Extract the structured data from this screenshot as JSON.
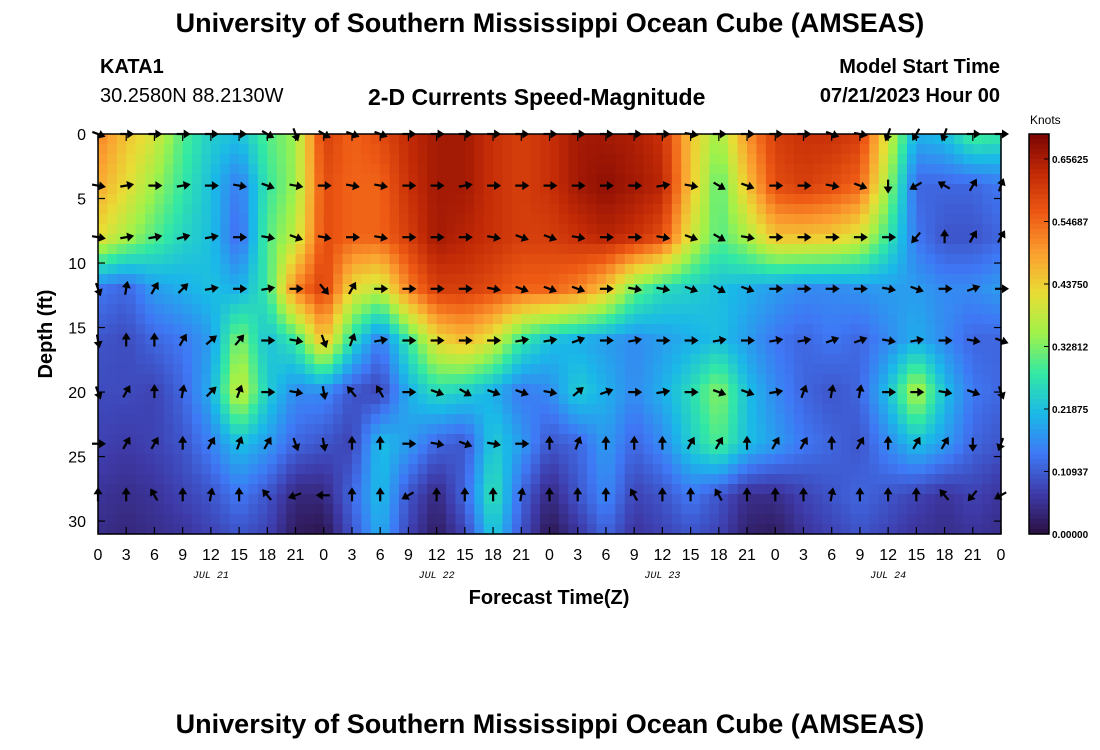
{
  "header": {
    "title": "University of Southern Mississippi Ocean Cube (AMSEAS)",
    "station_id": "KATA1",
    "coordinates": "30.2580N  88.2130W",
    "subtitle": "2-D Currents Speed-Magnitude",
    "model_start_label": "Model Start Time",
    "model_start_value": "07/21/2023 Hour 00"
  },
  "footer": {
    "title": "University of Southern Mississippi Ocean Cube (AMSEAS)"
  },
  "chart_data": {
    "type": "heatmap",
    "title": "2-D Currents Speed-Magnitude",
    "xlabel": "Forecast Time(Z)",
    "ylabel": "Depth (ft)",
    "x_range_hours": [
      0,
      96
    ],
    "y_range_ft": [
      0,
      31
    ],
    "x_tick_labels": [
      "0",
      "3",
      "6",
      "9",
      "12",
      "15",
      "18",
      "21",
      "0",
      "3",
      "6",
      "9",
      "12",
      "15",
      "18",
      "21",
      "0",
      "3",
      "6",
      "9",
      "12",
      "15",
      "18",
      "21",
      "0",
      "3",
      "6",
      "9",
      "12",
      "15",
      "18",
      "21",
      "0"
    ],
    "date_labels": [
      {
        "text": "JUL 21",
        "hour": 12
      },
      {
        "text": "JUL 22",
        "hour": 36
      },
      {
        "text": "JUL 23",
        "hour": 60
      },
      {
        "text": "JUL 24",
        "hour": 84
      }
    ],
    "y_ticks": [
      0,
      5,
      10,
      15,
      20,
      25,
      30
    ],
    "colorbar": {
      "units": "Knots",
      "range": [
        0,
        0.7
      ],
      "tick_values": [
        0.0,
        0.10937,
        0.21875,
        0.32812,
        0.4375,
        0.54687,
        0.65625
      ],
      "tick_labels": [
        "0.00000",
        "0.10937",
        "0.21875",
        "0.32812",
        "0.43750",
        "0.54687",
        "0.65625"
      ],
      "colors": [
        "#2a0f3f",
        "#3e3aa8",
        "#3f78f5",
        "#1ab8e8",
        "#32e8a5",
        "#9ef24a",
        "#e8dd35",
        "#fba030",
        "#ee5a14",
        "#c22a06",
        "#7a0403"
      ]
    },
    "speed_grid_depths_ft": [
      0,
      4,
      8,
      12,
      16,
      20,
      24,
      28,
      31
    ],
    "speed_grid_hours": [
      0,
      3,
      6,
      9,
      12,
      15,
      18,
      21,
      24,
      27,
      30,
      33,
      36,
      39,
      42,
      45,
      48,
      51,
      54,
      57,
      60,
      63,
      66,
      69,
      72,
      75,
      78,
      81,
      84,
      87,
      90,
      93,
      96
    ],
    "speed_grid_knots": [
      [
        0.52,
        0.45,
        0.4,
        0.3,
        0.24,
        0.22,
        0.3,
        0.35,
        0.6,
        0.55,
        0.58,
        0.63,
        0.66,
        0.66,
        0.62,
        0.6,
        0.62,
        0.66,
        0.66,
        0.65,
        0.62,
        0.45,
        0.35,
        0.5,
        0.6,
        0.62,
        0.62,
        0.6,
        0.4,
        0.2,
        0.22,
        0.3,
        0.28
      ],
      [
        0.48,
        0.42,
        0.35,
        0.28,
        0.22,
        0.14,
        0.28,
        0.35,
        0.58,
        0.55,
        0.55,
        0.62,
        0.66,
        0.66,
        0.62,
        0.6,
        0.62,
        0.66,
        0.68,
        0.66,
        0.64,
        0.45,
        0.3,
        0.45,
        0.58,
        0.6,
        0.58,
        0.55,
        0.35,
        0.12,
        0.12,
        0.12,
        0.14
      ],
      [
        0.42,
        0.36,
        0.3,
        0.25,
        0.22,
        0.12,
        0.3,
        0.38,
        0.58,
        0.55,
        0.55,
        0.6,
        0.66,
        0.64,
        0.62,
        0.6,
        0.6,
        0.62,
        0.64,
        0.62,
        0.58,
        0.4,
        0.3,
        0.36,
        0.45,
        0.45,
        0.44,
        0.4,
        0.28,
        0.14,
        0.1,
        0.1,
        0.12
      ],
      [
        0.14,
        0.12,
        0.18,
        0.2,
        0.22,
        0.2,
        0.28,
        0.52,
        0.6,
        0.42,
        0.38,
        0.52,
        0.6,
        0.6,
        0.58,
        0.55,
        0.55,
        0.52,
        0.45,
        0.32,
        0.26,
        0.24,
        0.22,
        0.2,
        0.18,
        0.16,
        0.16,
        0.17,
        0.18,
        0.18,
        0.16,
        0.16,
        0.18
      ],
      [
        0.1,
        0.09,
        0.12,
        0.14,
        0.18,
        0.34,
        0.22,
        0.28,
        0.46,
        0.26,
        0.14,
        0.28,
        0.42,
        0.46,
        0.4,
        0.28,
        0.22,
        0.2,
        0.18,
        0.16,
        0.18,
        0.2,
        0.22,
        0.18,
        0.14,
        0.12,
        0.14,
        0.12,
        0.16,
        0.2,
        0.16,
        0.12,
        0.12
      ],
      [
        0.09,
        0.09,
        0.08,
        0.12,
        0.2,
        0.4,
        0.24,
        0.16,
        0.16,
        0.1,
        0.08,
        0.2,
        0.26,
        0.24,
        0.2,
        0.14,
        0.16,
        0.24,
        0.2,
        0.16,
        0.2,
        0.26,
        0.34,
        0.22,
        0.16,
        0.12,
        0.1,
        0.12,
        0.22,
        0.38,
        0.22,
        0.14,
        0.12
      ],
      [
        0.08,
        0.07,
        0.08,
        0.1,
        0.15,
        0.22,
        0.18,
        0.12,
        0.1,
        0.08,
        0.22,
        0.18,
        0.12,
        0.1,
        0.24,
        0.18,
        0.1,
        0.12,
        0.18,
        0.12,
        0.16,
        0.24,
        0.3,
        0.22,
        0.18,
        0.14,
        0.12,
        0.1,
        0.16,
        0.22,
        0.18,
        0.12,
        0.1
      ],
      [
        0.06,
        0.05,
        0.06,
        0.08,
        0.1,
        0.14,
        0.1,
        0.04,
        0.04,
        0.12,
        0.22,
        0.1,
        0.04,
        0.12,
        0.28,
        0.12,
        0.04,
        0.1,
        0.16,
        0.08,
        0.1,
        0.14,
        0.1,
        0.05,
        0.05,
        0.08,
        0.1,
        0.12,
        0.1,
        0.08,
        0.06,
        0.08,
        0.06
      ],
      [
        0.05,
        0.04,
        0.05,
        0.06,
        0.08,
        0.1,
        0.08,
        0.02,
        0.01,
        0.1,
        0.2,
        0.08,
        0.02,
        0.08,
        0.24,
        0.1,
        0.01,
        0.06,
        0.12,
        0.06,
        0.08,
        0.1,
        0.08,
        0.03,
        0.02,
        0.06,
        0.08,
        0.1,
        0.08,
        0.06,
        0.05,
        0.06,
        0.05
      ]
    ],
    "vector_depths_ft": [
      0,
      4,
      8,
      12,
      16,
      20,
      24,
      28
    ],
    "vector_hours": [
      0,
      3,
      6,
      9,
      12,
      15,
      18,
      21,
      24,
      27,
      30,
      33,
      36,
      39,
      42,
      45,
      48,
      51,
      54,
      57,
      60,
      63,
      66,
      69,
      72,
      75,
      78,
      81,
      84,
      87,
      90,
      93,
      96
    ],
    "vector_directions_deg": [
      [
        110,
        90,
        90,
        90,
        90,
        90,
        120,
        160,
        120,
        110,
        110,
        90,
        90,
        90,
        90,
        90,
        90,
        90,
        90,
        90,
        90,
        100,
        90,
        90,
        90,
        90,
        110,
        100,
        200,
        210,
        200,
        90,
        90
      ],
      [
        100,
        80,
        90,
        80,
        90,
        100,
        110,
        100,
        90,
        100,
        100,
        90,
        90,
        80,
        90,
        90,
        90,
        90,
        90,
        90,
        80,
        100,
        120,
        110,
        90,
        90,
        100,
        110,
        180,
        240,
        300,
        30,
        20
      ],
      [
        100,
        80,
        80,
        75,
        80,
        90,
        100,
        110,
        100,
        90,
        100,
        90,
        90,
        90,
        100,
        110,
        110,
        100,
        90,
        90,
        100,
        110,
        120,
        100,
        90,
        90,
        90,
        90,
        90,
        220,
        0,
        30,
        30
      ],
      [
        160,
        10,
        30,
        45,
        80,
        90,
        80,
        90,
        140,
        30,
        90,
        90,
        90,
        90,
        100,
        110,
        110,
        110,
        90,
        100,
        100,
        110,
        120,
        110,
        90,
        90,
        90,
        90,
        100,
        110,
        90,
        70,
        90
      ],
      [
        170,
        0,
        0,
        30,
        50,
        40,
        90,
        100,
        160,
        20,
        80,
        90,
        90,
        90,
        90,
        80,
        80,
        70,
        90,
        80,
        90,
        90,
        80,
        90,
        80,
        80,
        70,
        70,
        100,
        80,
        90,
        100,
        110
      ],
      [
        160,
        30,
        0,
        10,
        45,
        20,
        90,
        100,
        170,
        320,
        330,
        90,
        110,
        120,
        110,
        110,
        100,
        50,
        70,
        90,
        80,
        90,
        110,
        110,
        80,
        20,
        10,
        10,
        90,
        90,
        100,
        110,
        160
      ],
      [
        90,
        30,
        30,
        0,
        30,
        20,
        30,
        160,
        170,
        0,
        0,
        90,
        100,
        110,
        100,
        90,
        0,
        20,
        0,
        0,
        0,
        30,
        30,
        0,
        30,
        30,
        0,
        30,
        0,
        30,
        30,
        180,
        200
      ],
      [
        0,
        0,
        330,
        0,
        10,
        0,
        320,
        250,
        270,
        0,
        0,
        240,
        0,
        0,
        0,
        10,
        0,
        0,
        0,
        330,
        0,
        0,
        330,
        0,
        0,
        0,
        10,
        0,
        0,
        0,
        320,
        220,
        240
      ]
    ]
  }
}
